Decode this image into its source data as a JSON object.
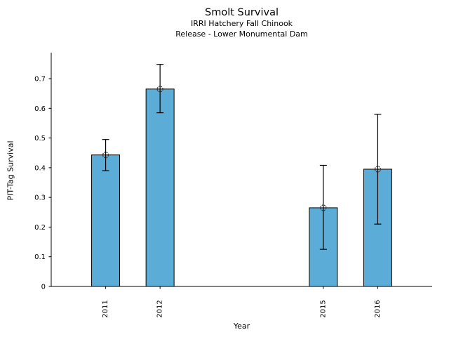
{
  "chart_data": {
    "type": "bar",
    "title": "Smolt Survival",
    "subtitle1": "IRRI Hatchery Fall Chinook",
    "subtitle2": "Release - Lower Monumental Dam",
    "xlabel": "Year",
    "ylabel": "PIT-Tag Survival",
    "categories": [
      2011,
      2012,
      2015,
      2016
    ],
    "values": [
      0.443,
      0.665,
      0.265,
      0.395
    ],
    "error_low": [
      0.39,
      0.585,
      0.125,
      0.21
    ],
    "error_high": [
      0.495,
      0.748,
      0.408,
      0.58
    ],
    "xlim": [
      2010,
      2017
    ],
    "ylim": [
      0,
      0.7875
    ],
    "yticks": [
      0,
      0.1,
      0.2,
      0.3,
      0.4,
      0.5,
      0.6,
      0.7
    ],
    "ytick_labels": [
      "0",
      "0.1",
      "0.2",
      "0.3",
      "0.4",
      "0.5",
      "0.6",
      "0.7"
    ],
    "bar_color": "#5BACD6",
    "bar_edge_color": "#000000",
    "error_color": "#000000",
    "axis_color": "#000000",
    "marker": "open-circle",
    "grid": false,
    "legend": null
  }
}
